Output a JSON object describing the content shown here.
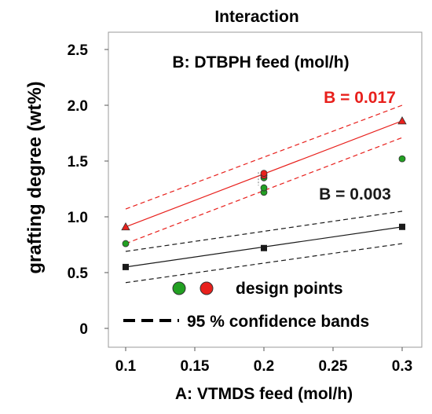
{
  "chart_data": {
    "type": "line",
    "title": "Interaction",
    "xlabel": "A: VTMDS feed (mol/h)",
    "ylabel": "grafting degree  (wt%)",
    "xlim": [
      0.1,
      0.3
    ],
    "ylim": [
      0,
      2.5
    ],
    "xticks": [
      0.1,
      0.15,
      0.2,
      0.25,
      0.3
    ],
    "xtick_labels": [
      "0.1",
      "0.15",
      "0.2",
      "0.25",
      "0.3"
    ],
    "yticks": [
      0,
      0.5,
      1.0,
      1.5,
      2.0,
      2.5
    ],
    "ytick_labels": [
      "0",
      "0.5",
      "1.0",
      "1.5",
      "2.0",
      "2.5"
    ],
    "factor_label": "B: DTBPH feed (mol/h)",
    "grid": false,
    "series": [
      {
        "name": "B = 0.017",
        "color": "#e8201c",
        "marker": "triangle",
        "fit": [
          [
            0.1,
            0.91
          ],
          [
            0.3,
            1.86
          ]
        ],
        "upper": [
          [
            0.1,
            1.07
          ],
          [
            0.3,
            2.0
          ]
        ],
        "lower": [
          [
            0.1,
            0.76
          ],
          [
            0.3,
            1.71
          ]
        ],
        "means": [
          [
            0.1,
            0.91
          ],
          [
            0.3,
            1.86
          ]
        ]
      },
      {
        "name": "B = 0.003",
        "color": "#1a1a1a",
        "marker": "square",
        "fit": [
          [
            0.1,
            0.55
          ],
          [
            0.3,
            0.91
          ]
        ],
        "upper": [
          [
            0.1,
            0.69
          ],
          [
            0.3,
            1.05
          ]
        ],
        "lower": [
          [
            0.1,
            0.41
          ],
          [
            0.3,
            0.76
          ]
        ],
        "means": [
          [
            0.1,
            0.55
          ],
          [
            0.2,
            0.72
          ],
          [
            0.3,
            0.91
          ]
        ]
      }
    ],
    "design_points": [
      {
        "x": 0.1,
        "y": 0.76,
        "color": "#22a022"
      },
      {
        "x": 0.2,
        "y": 1.22,
        "color": "#22a022"
      },
      {
        "x": 0.2,
        "y": 1.26,
        "color": "#22a022"
      },
      {
        "x": 0.2,
        "y": 1.35,
        "color": "#22a022"
      },
      {
        "x": 0.2,
        "y": 1.37,
        "color": "#e8201c"
      },
      {
        "x": 0.2,
        "y": 1.39,
        "color": "#e8201c"
      },
      {
        "x": 0.3,
        "y": 1.52,
        "color": "#22a022"
      }
    ],
    "legend": {
      "design_points_label": "design points",
      "confidence_label": "95 % confidence bands",
      "placement": "bottom-right",
      "dot_colors": [
        "#22a022",
        "#e8201c"
      ]
    }
  }
}
